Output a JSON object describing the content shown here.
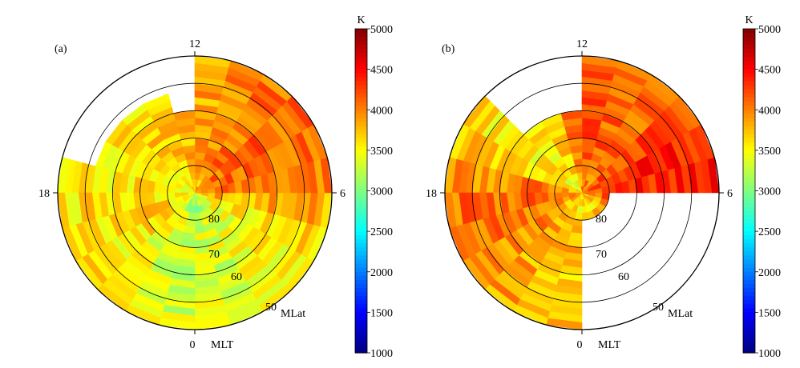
{
  "chart_data": [
    {
      "type": "heatmap",
      "panel_label": "(a)",
      "projection": "polar",
      "mlt_labels": [
        "12",
        "18",
        "6",
        "0"
      ],
      "mlt_axis_label": "MLT",
      "mlat_axis_label": "MLat",
      "mlat_labels": [
        "80",
        "70",
        "60",
        "50"
      ],
      "mlat_range": [
        40,
        90
      ],
      "mlt_bin_hours": 1,
      "mlat_bin_deg": 2.5,
      "missing_bins": "white",
      "colorbar": {
        "unit": "K",
        "min": 1000,
        "max": 5000,
        "ticks": [
          "5000",
          "4500",
          "4000",
          "3500",
          "3000",
          "2500",
          "2000",
          "1500",
          "1000"
        ],
        "colormap": "jet"
      },
      "mlt_coverage": [
        {
          "from": 17.5,
          "to": 24,
          "mlat_min": 40,
          "mlat_max": 90
        },
        {
          "from": 13.5,
          "to": 17.5,
          "mlat_min": 52.5,
          "mlat_max": 90
        },
        {
          "from": 12,
          "to": 13.5,
          "mlat_min": 60,
          "mlat_max": 90
        },
        {
          "from": 0,
          "to": 12,
          "mlat_min": 40,
          "mlat_max": 90
        },
        {
          "from": 18.9,
          "to": 24,
          "mlat_min": 80,
          "mlat_max": 90,
          "note": "partly empty near pole"
        }
      ],
      "temperature_profile_K": [
        {
          "mlt": 12,
          "value": 3800
        },
        {
          "mlt": 9,
          "value": 4100
        },
        {
          "mlt": 7,
          "value": 4100
        },
        {
          "mlt": 5.5,
          "value": 3800
        },
        {
          "mlt": 4,
          "value": 3500
        },
        {
          "mlt": 1,
          "value": 3350
        },
        {
          "mlt": 0,
          "value": 3300
        },
        {
          "mlt": 22,
          "value": 3400
        },
        {
          "mlt": 20,
          "value": 3650
        },
        {
          "mlt": 18,
          "value": 3600
        },
        {
          "mlt": 16,
          "value": 3500
        },
        {
          "mlt": 14,
          "value": 3700
        },
        {
          "mlt": 12,
          "value": 3800
        }
      ]
    },
    {
      "type": "heatmap",
      "panel_label": "(b)",
      "projection": "polar",
      "mlt_labels": [
        "12",
        "18",
        "6",
        "0"
      ],
      "mlt_axis_label": "MLT",
      "mlat_axis_label": "MLat",
      "mlat_labels": [
        "80",
        "70",
        "60",
        "50"
      ],
      "mlat_range": [
        40,
        90
      ],
      "mlt_bin_hours": 1,
      "mlat_bin_deg": 2.5,
      "missing_bins": "white",
      "colorbar": {
        "unit": "K",
        "min": 1000,
        "max": 5000,
        "ticks": [
          "5000",
          "4500",
          "4000",
          "3500",
          "3000",
          "2500",
          "2000",
          "1500",
          "1000"
        ],
        "colormap": "jet"
      },
      "mlt_coverage": [
        {
          "from": 15,
          "to": 24,
          "mlat_min": 40,
          "mlat_max": 90
        },
        {
          "from": 12,
          "to": 15,
          "mlat_min": 60,
          "mlat_max": 90
        },
        {
          "from": 0,
          "to": 6,
          "mlat_min": 80,
          "mlat_max": 90
        },
        {
          "from": 6,
          "to": 12,
          "mlat_min": 40,
          "mlat_max": 90
        }
      ],
      "temperature_profile_K": [
        {
          "mlt": 12,
          "value": 4200
        },
        {
          "mlt": 9,
          "value": 4100
        },
        {
          "mlt": 7,
          "value": 4500
        },
        {
          "mlt": 6,
          "value": 4300
        },
        {
          "mlt": 5,
          "value": 3900
        },
        {
          "mlt": 0,
          "value": 3700
        },
        {
          "mlt": 22,
          "value": 3800
        },
        {
          "mlt": 20,
          "value": 4000
        },
        {
          "mlt": 18,
          "value": 4100
        },
        {
          "mlt": 16,
          "value": 3600
        },
        {
          "mlt": 14,
          "value": 3500
        },
        {
          "mlt": 12,
          "value": 4200
        }
      ]
    }
  ]
}
